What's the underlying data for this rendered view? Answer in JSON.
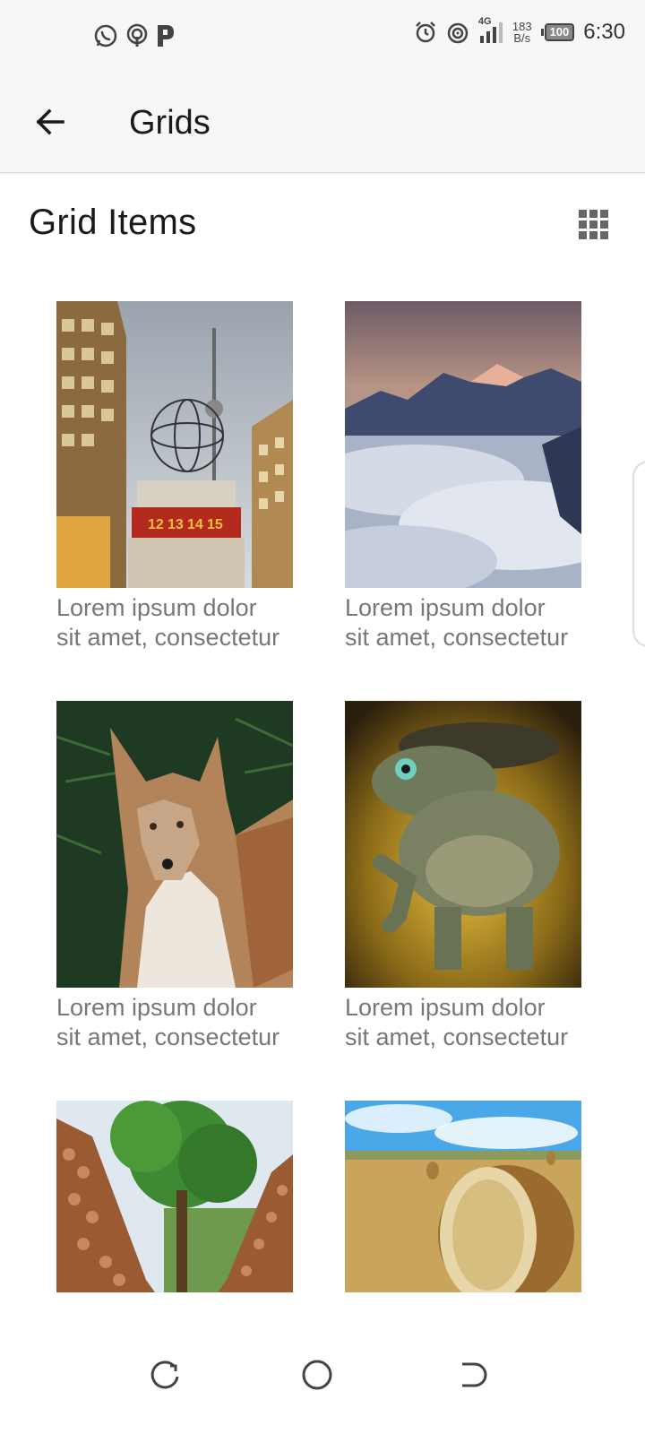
{
  "status_bar": {
    "time": "6:30",
    "net_speed_value": "183",
    "net_speed_unit": "B/s",
    "network_type": "4G",
    "battery": "100",
    "left_icons": [
      "whatsapp-icon",
      "podcast-icon",
      "parking-p-icon"
    ],
    "right_icons": [
      "alarm-icon",
      "hotspot-icon",
      "signal-icon",
      "battery-icon"
    ]
  },
  "app_bar": {
    "title": "Grids",
    "back_icon": "arrow-back-icon"
  },
  "section": {
    "title": "Grid Items",
    "view_toggle_icon": "grid-view-icon"
  },
  "grid": {
    "items": [
      {
        "line1": "Lorem ipsum dolor",
        "line2": "sit amet, consectetur",
        "image": "world clock tower"
      },
      {
        "line1": "Lorem ipsum dolor",
        "line2": "sit amet, consectetur",
        "image": "mountains above clouds"
      },
      {
        "line1": "Lorem ipsum dolor",
        "line2": "sit amet, consectetur",
        "image": "red fox"
      },
      {
        "line1": "Lorem ipsum dolor",
        "line2": "sit amet, consectetur",
        "image": "frog warrior"
      },
      {
        "line1": "",
        "line2": "",
        "image": "stacked logs and tree"
      },
      {
        "line1": "",
        "line2": "",
        "image": "hay bale field"
      }
    ]
  },
  "nav_bar": {
    "icons": [
      "recent-apps-icon",
      "home-icon",
      "back-nav-icon"
    ]
  },
  "colors": {
    "bar_bg": "#f7f7f7",
    "caption": "#777777",
    "title": "#1a1a1a"
  }
}
